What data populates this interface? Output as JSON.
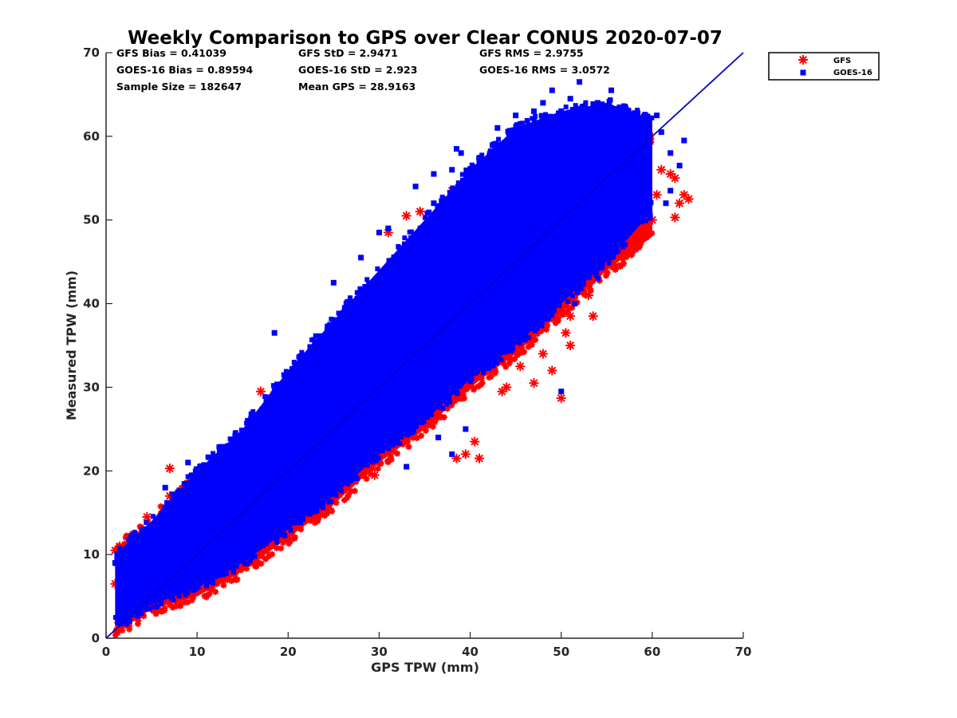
{
  "chart_data": {
    "type": "scatter",
    "title": "Weekly Comparison to GPS over Clear CONUS 2020-07-07",
    "xlabel": "GPS TPW (mm)",
    "ylabel": "Measured TPW (mm)",
    "xlim": [
      0,
      70
    ],
    "ylim": [
      0,
      70
    ],
    "xticks": [
      0,
      10,
      20,
      30,
      40,
      50,
      60,
      70
    ],
    "yticks": [
      0,
      10,
      20,
      30,
      40,
      50,
      60,
      70
    ],
    "xtick_labels": [
      "0",
      "10",
      "20",
      "30",
      "40",
      "50",
      "60",
      "70"
    ],
    "ytick_labels": [
      "0",
      "10",
      "20",
      "30",
      "40",
      "50",
      "60",
      "70"
    ],
    "grid": false,
    "legend_position": "outside-top-right",
    "stats": {
      "gfs_bias": "GFS Bias = 0.41039",
      "gfs_std": "GFS StD = 2.9471",
      "gfs_rms": "GFS RMS = 2.9755",
      "goes_bias": "GOES-16 Bias = 0.89594",
      "goes_std": "GOES-16 StD = 2.923",
      "goes_rms": "GOES-16 RMS = 3.0572",
      "sample_size": "Sample Size = 182647",
      "mean_gps": "Mean GPS = 28.9163"
    },
    "reference_line": {
      "name": "1:1 line",
      "x": [
        0,
        70
      ],
      "y": [
        0,
        70
      ],
      "color": "#0000cc"
    },
    "series": [
      {
        "name": "GFS",
        "marker": "asterisk",
        "color": "#ff0000",
        "band": {
          "x": [
            1,
            3,
            5,
            10,
            15,
            20,
            25,
            30,
            35,
            40,
            45,
            50,
            55,
            60
          ],
          "ylow": [
            1,
            2,
            3.5,
            5,
            8,
            12,
            16,
            21,
            25,
            30,
            34,
            39,
            44,
            48
          ],
          "yhigh": [
            11,
            12,
            14,
            19,
            24,
            31,
            36,
            41,
            48,
            52,
            55,
            58,
            61,
            60
          ]
        },
        "outliers": [
          [
            7,
            20.3
          ],
          [
            7,
            17
          ],
          [
            4.5,
            14.5
          ],
          [
            6.5,
            15
          ],
          [
            9,
            18.5
          ],
          [
            17,
            29.5
          ],
          [
            24.5,
            15.5
          ],
          [
            33,
            50.5
          ],
          [
            34.5,
            51
          ],
          [
            38,
            53.5
          ],
          [
            31,
            48.5
          ],
          [
            29.5,
            19.5
          ],
          [
            38.5,
            21.5
          ],
          [
            39.5,
            22
          ],
          [
            40.5,
            23.5
          ],
          [
            41,
            21.5
          ],
          [
            43.5,
            29.5
          ],
          [
            44,
            30
          ],
          [
            45.5,
            32.5
          ],
          [
            47,
            30.5
          ],
          [
            48,
            34
          ],
          [
            49,
            32
          ],
          [
            50,
            28.7
          ],
          [
            50.5,
            36.5
          ],
          [
            51,
            35
          ],
          [
            51,
            38.5
          ],
          [
            53,
            41
          ],
          [
            53.5,
            38.5
          ],
          [
            54,
            43.5
          ],
          [
            55,
            45
          ],
          [
            56,
            44.5
          ],
          [
            57,
            49.5
          ],
          [
            58,
            51.5
          ],
          [
            59,
            50
          ],
          [
            60,
            50
          ],
          [
            60.5,
            53
          ],
          [
            61,
            56
          ],
          [
            62,
            55.5
          ],
          [
            62.5,
            55
          ],
          [
            63,
            52
          ],
          [
            63.5,
            53
          ],
          [
            64,
            52.5
          ],
          [
            62.5,
            50.3
          ],
          [
            1,
            10.5
          ],
          [
            1.5,
            11
          ],
          [
            1,
            6.5
          ],
          [
            2,
            2.5
          ]
        ]
      },
      {
        "name": "GOES-16",
        "marker": "square",
        "color": "#0000ff",
        "band": {
          "x": [
            1,
            3,
            5,
            10,
            15,
            20,
            25,
            30,
            35,
            40,
            45,
            50,
            55,
            60
          ],
          "ylow": [
            1.5,
            2.5,
            4,
            6,
            9,
            13,
            17,
            22,
            26,
            31,
            35,
            40,
            45,
            51
          ],
          "yhigh": [
            10,
            12,
            14,
            20,
            25,
            32,
            38,
            44,
            50,
            56,
            61,
            63,
            64,
            62
          ]
        },
        "outliers": [
          [
            18.5,
            36.5
          ],
          [
            25,
            42.5
          ],
          [
            28,
            45.5
          ],
          [
            30,
            48.5
          ],
          [
            31,
            49
          ],
          [
            34.5,
            48
          ],
          [
            36,
            52
          ],
          [
            37,
            52.5
          ],
          [
            38,
            56
          ],
          [
            38.5,
            58.5
          ],
          [
            39,
            58
          ],
          [
            41,
            57
          ],
          [
            36,
            55.5
          ],
          [
            34,
            54
          ],
          [
            42.5,
            59
          ],
          [
            43,
            61
          ],
          [
            45,
            62.5
          ],
          [
            47,
            63
          ],
          [
            48,
            64
          ],
          [
            49,
            65.5
          ],
          [
            50,
            63
          ],
          [
            51,
            64.5
          ],
          [
            52,
            66.5
          ],
          [
            54,
            64
          ],
          [
            55.5,
            65.5
          ],
          [
            57,
            62.5
          ],
          [
            59,
            61
          ],
          [
            60.5,
            62.5
          ],
          [
            61,
            60.5
          ],
          [
            62,
            58
          ],
          [
            63,
            56.5
          ],
          [
            63.5,
            59.5
          ],
          [
            62,
            53.5
          ],
          [
            61.5,
            52
          ],
          [
            38,
            22
          ],
          [
            36.5,
            24
          ],
          [
            39.5,
            25
          ],
          [
            33,
            20.5
          ],
          [
            50,
            29.5
          ],
          [
            51.5,
            40
          ],
          [
            52,
            42
          ],
          [
            54,
            43
          ],
          [
            6.5,
            18
          ],
          [
            7,
            16
          ],
          [
            9,
            21
          ],
          [
            1,
            9
          ],
          [
            1.5,
            4
          ]
        ]
      }
    ]
  }
}
